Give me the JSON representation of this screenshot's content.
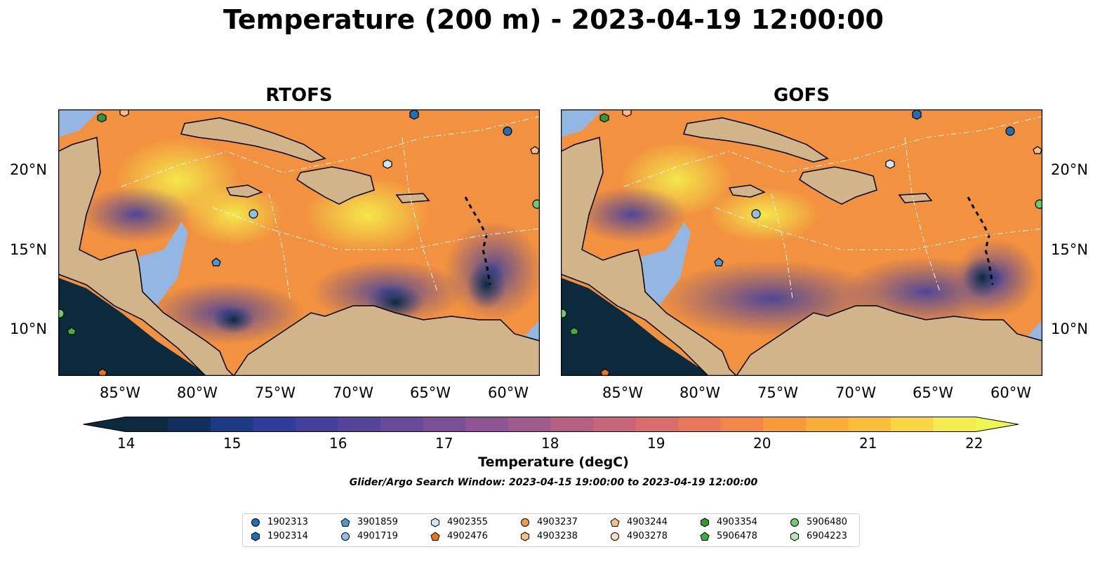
{
  "figure": {
    "title": "Temperature (200 m) - 2023-04-19 12:00:00",
    "panels": [
      {
        "title": "RTOFS"
      },
      {
        "title": "GOFS"
      }
    ],
    "lat_ticks": [
      "20°N",
      "15°N",
      "10°N"
    ],
    "lon_ticks": [
      "85°W",
      "80°W",
      "75°W",
      "70°W",
      "65°W",
      "60°W"
    ],
    "colorbar": {
      "ticks": [
        "14",
        "15",
        "16",
        "17",
        "18",
        "19",
        "20",
        "21",
        "22"
      ],
      "label": "Temperature (degC)",
      "colors": [
        "#0b2a3e",
        "#12305e",
        "#1d3a86",
        "#2f3c9c",
        "#44409f",
        "#56449b",
        "#69499a",
        "#7a4f95",
        "#8d5593",
        "#a05a8d",
        "#b55f82",
        "#c9657a",
        "#da6c6e",
        "#e8785c",
        "#f1884a",
        "#f69a3a",
        "#f9ac38",
        "#fbbe3a",
        "#fbd540",
        "#f4ec4c"
      ],
      "extend_low_color": "#0b2a3e",
      "extend_high_color": "#eef74f"
    },
    "subtitle": "Glider/Argo Search Window: 2023-04-15 19:00:00 to 2023-04-19 12:00:00"
  },
  "legend": {
    "items": [
      {
        "label": "1902313",
        "marker": "circle",
        "color": "#1f6fb4"
      },
      {
        "label": "1902314",
        "marker": "hexagon",
        "color": "#1f6fb4"
      },
      {
        "label": "3901859",
        "marker": "pentagon",
        "color": "#4a98d1"
      },
      {
        "label": "4901719",
        "marker": "circle",
        "color": "#8ec0e6"
      },
      {
        "label": "4902355",
        "marker": "hexagon",
        "color": "#cfe6f6"
      },
      {
        "label": "4902476",
        "marker": "pentagon",
        "color": "#f2720d"
      },
      {
        "label": "4903237",
        "marker": "circle",
        "color": "#f59a43"
      },
      {
        "label": "4903238",
        "marker": "hexagon",
        "color": "#f8bc86"
      },
      {
        "label": "4903244",
        "marker": "pentagon",
        "color": "#f8bc86"
      },
      {
        "label": "4903278",
        "marker": "circle",
        "color": "#fcdcbf"
      },
      {
        "label": "4903354",
        "marker": "hexagon",
        "color": "#2f9a2f"
      },
      {
        "label": "5906478",
        "marker": "pentagon",
        "color": "#3dae3d"
      },
      {
        "label": "5906480",
        "marker": "circle",
        "color": "#6ccb6c"
      },
      {
        "label": "6904223",
        "marker": "hexagon",
        "color": "#b8e8b8"
      }
    ]
  },
  "map_colors": {
    "land": "#d1b48a",
    "shelf": "#94b6e2",
    "deep": "#0b2a3e"
  }
}
